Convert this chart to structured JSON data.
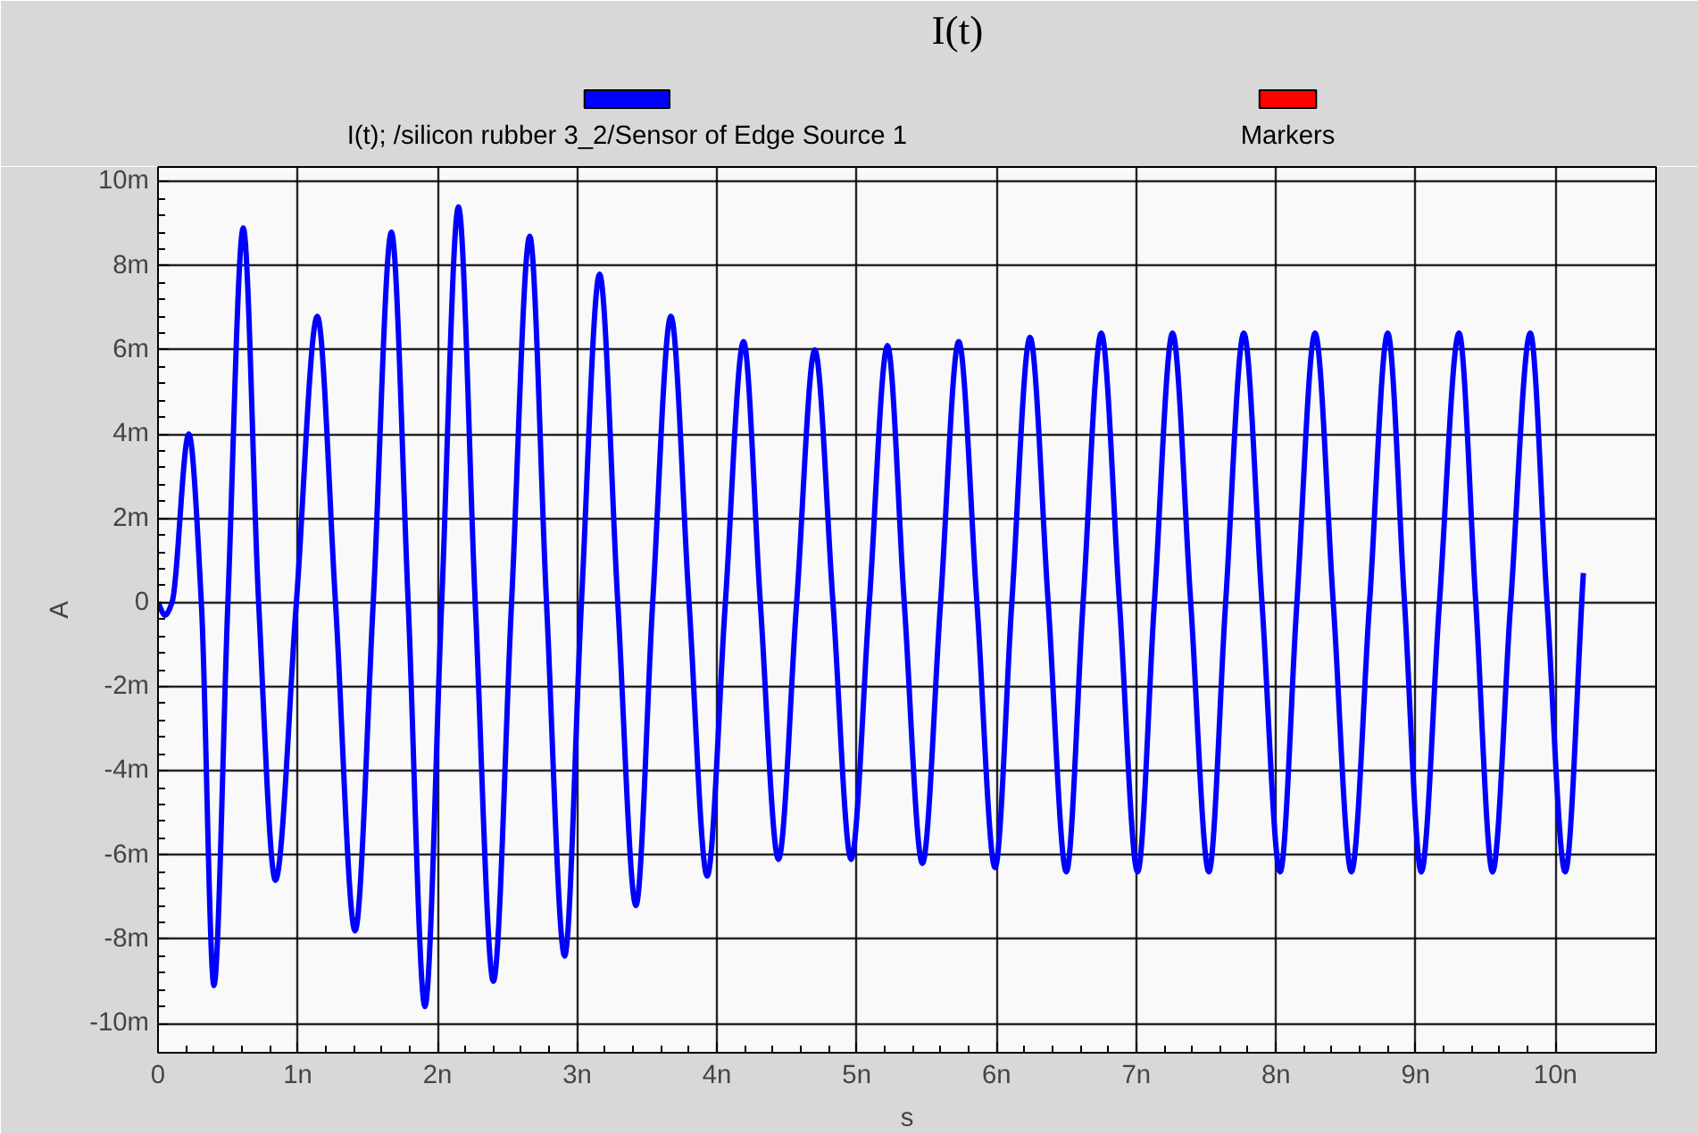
{
  "chart_data": {
    "type": "line",
    "title": "I(t)",
    "xlabel": "s",
    "ylabel": "A",
    "x": [
      0,
      0.05,
      0.1,
      0.22,
      0.31,
      0.4,
      0.5,
      0.61,
      0.72,
      0.84,
      0.99,
      1.14,
      1.27,
      1.41,
      1.54,
      1.67,
      1.79,
      1.91,
      2.03,
      2.15,
      2.27,
      2.4,
      2.53,
      2.66,
      2.78,
      2.91,
      3.03,
      3.16,
      3.29,
      3.42,
      3.54,
      3.67,
      3.8,
      3.93,
      4.06,
      4.19,
      4.31,
      4.44,
      4.57,
      4.7,
      4.83,
      4.96,
      5.09,
      5.22,
      5.34,
      5.47,
      5.6,
      5.73,
      5.86,
      5.99,
      6.11,
      6.24,
      6.37,
      6.5,
      6.62,
      6.75,
      6.88,
      7.01,
      7.13,
      7.26,
      7.39,
      7.52,
      7.64,
      7.77,
      7.9,
      8.03,
      8.15,
      8.28,
      8.41,
      8.54,
      8.67,
      8.8,
      8.92,
      9.04,
      9.17,
      9.31,
      9.43,
      9.55,
      9.68,
      9.82,
      9.94,
      10.07,
      10.2
    ],
    "series": [
      {
        "name": "I(t); /silicon rubber 3_2/Sensor of Edge Source 1",
        "color": "#0000ff",
        "values": [
          0,
          -0.3,
          0,
          4.0,
          0,
          -9.1,
          0,
          8.9,
          0,
          -6.6,
          0,
          6.8,
          0,
          -7.8,
          0,
          8.8,
          0,
          -9.6,
          0,
          9.4,
          0,
          -9.0,
          0,
          8.7,
          0,
          -8.4,
          0,
          7.8,
          0,
          -7.2,
          0,
          6.8,
          0,
          -6.5,
          0,
          6.2,
          0,
          -6.1,
          0,
          6.0,
          0,
          -6.1,
          0,
          6.1,
          0,
          -6.2,
          0,
          6.2,
          0,
          -6.3,
          0,
          6.3,
          0,
          -6.4,
          0,
          6.4,
          0,
          -6.4,
          0,
          6.4,
          0,
          -6.4,
          0,
          6.4,
          0,
          -6.4,
          0,
          6.4,
          0,
          -6.4,
          0,
          6.4,
          0,
          -6.4,
          0,
          6.4,
          0,
          -6.4,
          0,
          6.4,
          0,
          -6.4,
          0.7
        ]
      },
      {
        "name": "Markers",
        "color": "#ff0000",
        "values": [
          null,
          null,
          null,
          null,
          null,
          null,
          null,
          null,
          null,
          null,
          null,
          null,
          null,
          null,
          null,
          null,
          null,
          null,
          null,
          null,
          null,
          null,
          null,
          null,
          null,
          null,
          null,
          null,
          null,
          null,
          null,
          null,
          null,
          null,
          null,
          null,
          null,
          null,
          null,
          null,
          null,
          null,
          null,
          null,
          null,
          null,
          null,
          null,
          null,
          null,
          null,
          null,
          null,
          null,
          null,
          null,
          null,
          null,
          null,
          null,
          null,
          null,
          null,
          null,
          null,
          null,
          null,
          null,
          null,
          null,
          null,
          null,
          null,
          null,
          null,
          null,
          null,
          null,
          null,
          null,
          null,
          null,
          null
        ]
      }
    ],
    "xlim": [
      0,
      10.72
    ],
    "ylim": [
      -10.7,
      10.35
    ],
    "xticks": [
      {
        "value": 0,
        "label": "0"
      },
      {
        "value": 1,
        "label": "1n"
      },
      {
        "value": 2,
        "label": "2n"
      },
      {
        "value": 3,
        "label": "3n"
      },
      {
        "value": 4,
        "label": "4n"
      },
      {
        "value": 5,
        "label": "5n"
      },
      {
        "value": 6,
        "label": "6n"
      },
      {
        "value": 7,
        "label": "7n"
      },
      {
        "value": 8,
        "label": "8n"
      },
      {
        "value": 9,
        "label": "9n"
      },
      {
        "value": 10,
        "label": "10n"
      }
    ],
    "yticks": [
      {
        "value": -10,
        "label": "-10m"
      },
      {
        "value": -8,
        "label": "-8m"
      },
      {
        "value": -6,
        "label": "-6m"
      },
      {
        "value": -4,
        "label": "-4m"
      },
      {
        "value": -2,
        "label": "-2m"
      },
      {
        "value": 0,
        "label": "0"
      },
      {
        "value": 2,
        "label": "2m"
      },
      {
        "value": 4,
        "label": "4m"
      },
      {
        "value": 6,
        "label": "6m"
      },
      {
        "value": 8,
        "label": "8m"
      },
      {
        "value": 10,
        "label": "10m"
      }
    ],
    "grid": true,
    "legend": "top",
    "marker": "none",
    "line_style": "solid"
  }
}
